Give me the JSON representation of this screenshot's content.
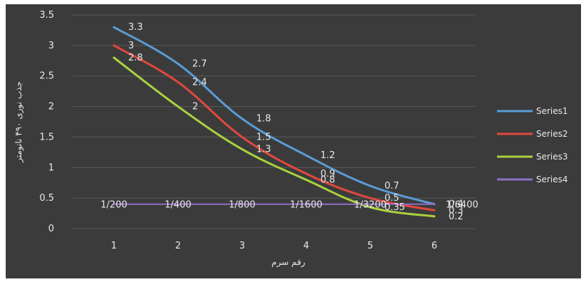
{
  "chart_data": {
    "type": "line",
    "x": [
      1,
      2,
      3,
      4,
      5,
      6
    ],
    "xticks": [
      "1",
      "2",
      "3",
      "4",
      "5",
      "6"
    ],
    "xlabel": "رقم سرم",
    "ylabel": "جذب نوری ۴۹۰ نانومتر",
    "ylim": [
      0,
      3.5
    ],
    "yticks": [
      0,
      0.5,
      1,
      1.5,
      2,
      2.5,
      3,
      3.5
    ],
    "ytick_labels": [
      "0",
      "0.5",
      "1",
      "1.5",
      "2",
      "2.5",
      "3",
      "3.5"
    ],
    "grid": true,
    "legend_position": "right",
    "series": [
      {
        "name": "Series1",
        "color": "#5b9bd5",
        "values": [
          3.3,
          2.7,
          1.8,
          1.2,
          0.7,
          0.4
        ],
        "labels": [
          "3.3",
          "2.7",
          "1.8",
          "1.2",
          "0.7",
          "0.4"
        ]
      },
      {
        "name": "Series2",
        "color": "#e0483e",
        "values": [
          3.0,
          2.4,
          1.5,
          0.9,
          0.5,
          0.3
        ],
        "labels": [
          "3",
          "2.4",
          "1.5",
          "0.9",
          "0.5",
          "0.3"
        ]
      },
      {
        "name": "Series3",
        "color": "#a9d13f",
        "values": [
          2.8,
          2.0,
          1.3,
          0.8,
          0.35,
          0.2
        ],
        "labels": [
          "2.8",
          "2",
          "1.3",
          "0.8",
          "0.35",
          "0.2"
        ]
      },
      {
        "name": "Series4",
        "color": "#8e6fc6",
        "values": [
          0.4,
          0.4,
          0.4,
          0.4,
          0.4,
          0.4
        ],
        "labels": [
          "1/200",
          "1/400",
          "1/800",
          "1/1600",
          "1/3200",
          "1/6400"
        ]
      }
    ]
  }
}
